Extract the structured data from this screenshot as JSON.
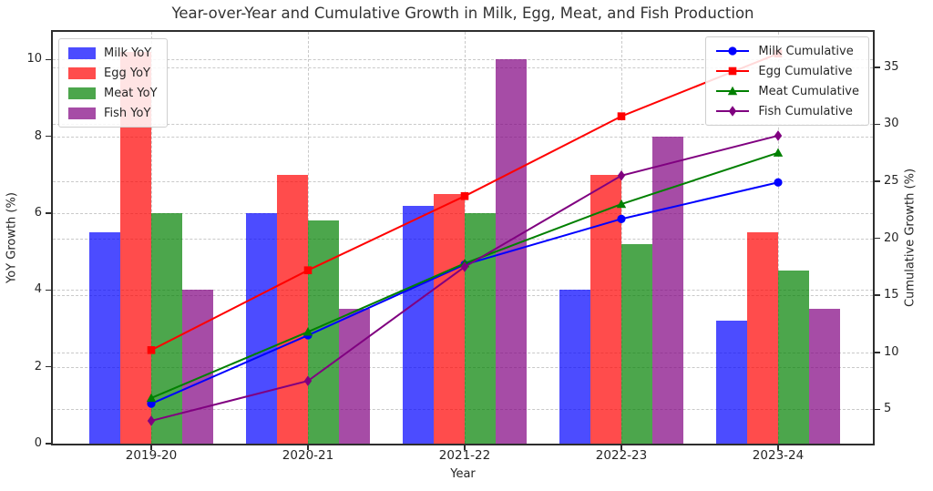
{
  "colors": {
    "background": "#ffffff",
    "grid": "#c9c9c9",
    "spine": "#2e2e2e",
    "text": "#262626",
    "title": "#333333"
  },
  "chart_data": {
    "type": "combo_bar_line",
    "title": "Year-over-Year and Cumulative Growth in Milk, Egg, Meat, and Fish Production",
    "xlabel": "Year",
    "categories": [
      "2019-20",
      "2020-21",
      "2021-22",
      "2022-23",
      "2023-24"
    ],
    "grid": true,
    "bar_axis": {
      "side": "left",
      "label": "YoY Growth (%)",
      "ticks": [
        0,
        2,
        4,
        6,
        8,
        10
      ],
      "ylim": [
        0,
        10.72
      ]
    },
    "line_axis": {
      "side": "right",
      "label": "Cumulative Growth (%)",
      "ticks": [
        5,
        10,
        15,
        20,
        25,
        30,
        35
      ],
      "ylim": [
        2.0,
        38.1
      ]
    },
    "bar_series": [
      {
        "name": "Milk YoY",
        "color": "#0000ff",
        "alpha": 0.7,
        "values": [
          5.5,
          6.0,
          6.2,
          4.0,
          3.2
        ]
      },
      {
        "name": "Egg YoY",
        "color": "#ff0000",
        "alpha": 0.7,
        "values": [
          10.2,
          7.0,
          6.5,
          7.0,
          5.5
        ]
      },
      {
        "name": "Meat YoY",
        "color": "#008000",
        "alpha": 0.7,
        "values": [
          6.0,
          5.8,
          6.0,
          5.2,
          4.5
        ]
      },
      {
        "name": "Fish YoY",
        "color": "#800080",
        "alpha": 0.7,
        "values": [
          4.0,
          3.5,
          10.0,
          8.0,
          3.5
        ]
      }
    ],
    "line_series": [
      {
        "name": "Milk Cumulative",
        "color": "#0000ff",
        "marker": "circle",
        "values": [
          5.5,
          11.5,
          17.7,
          21.7,
          24.9
        ]
      },
      {
        "name": "Egg Cumulative",
        "color": "#ff0000",
        "marker": "square",
        "values": [
          10.2,
          17.2,
          23.7,
          30.7,
          36.2
        ]
      },
      {
        "name": "Meat Cumulative",
        "color": "#008000",
        "marker": "triangle",
        "values": [
          6.0,
          11.8,
          17.8,
          23.0,
          27.5
        ]
      },
      {
        "name": "Fish Cumulative",
        "color": "#800080",
        "marker": "diamond",
        "values": [
          4.0,
          7.5,
          17.5,
          25.5,
          29.0
        ]
      }
    ],
    "legends": {
      "bar_legend_position": "upper left",
      "line_legend_position": "upper right"
    }
  }
}
